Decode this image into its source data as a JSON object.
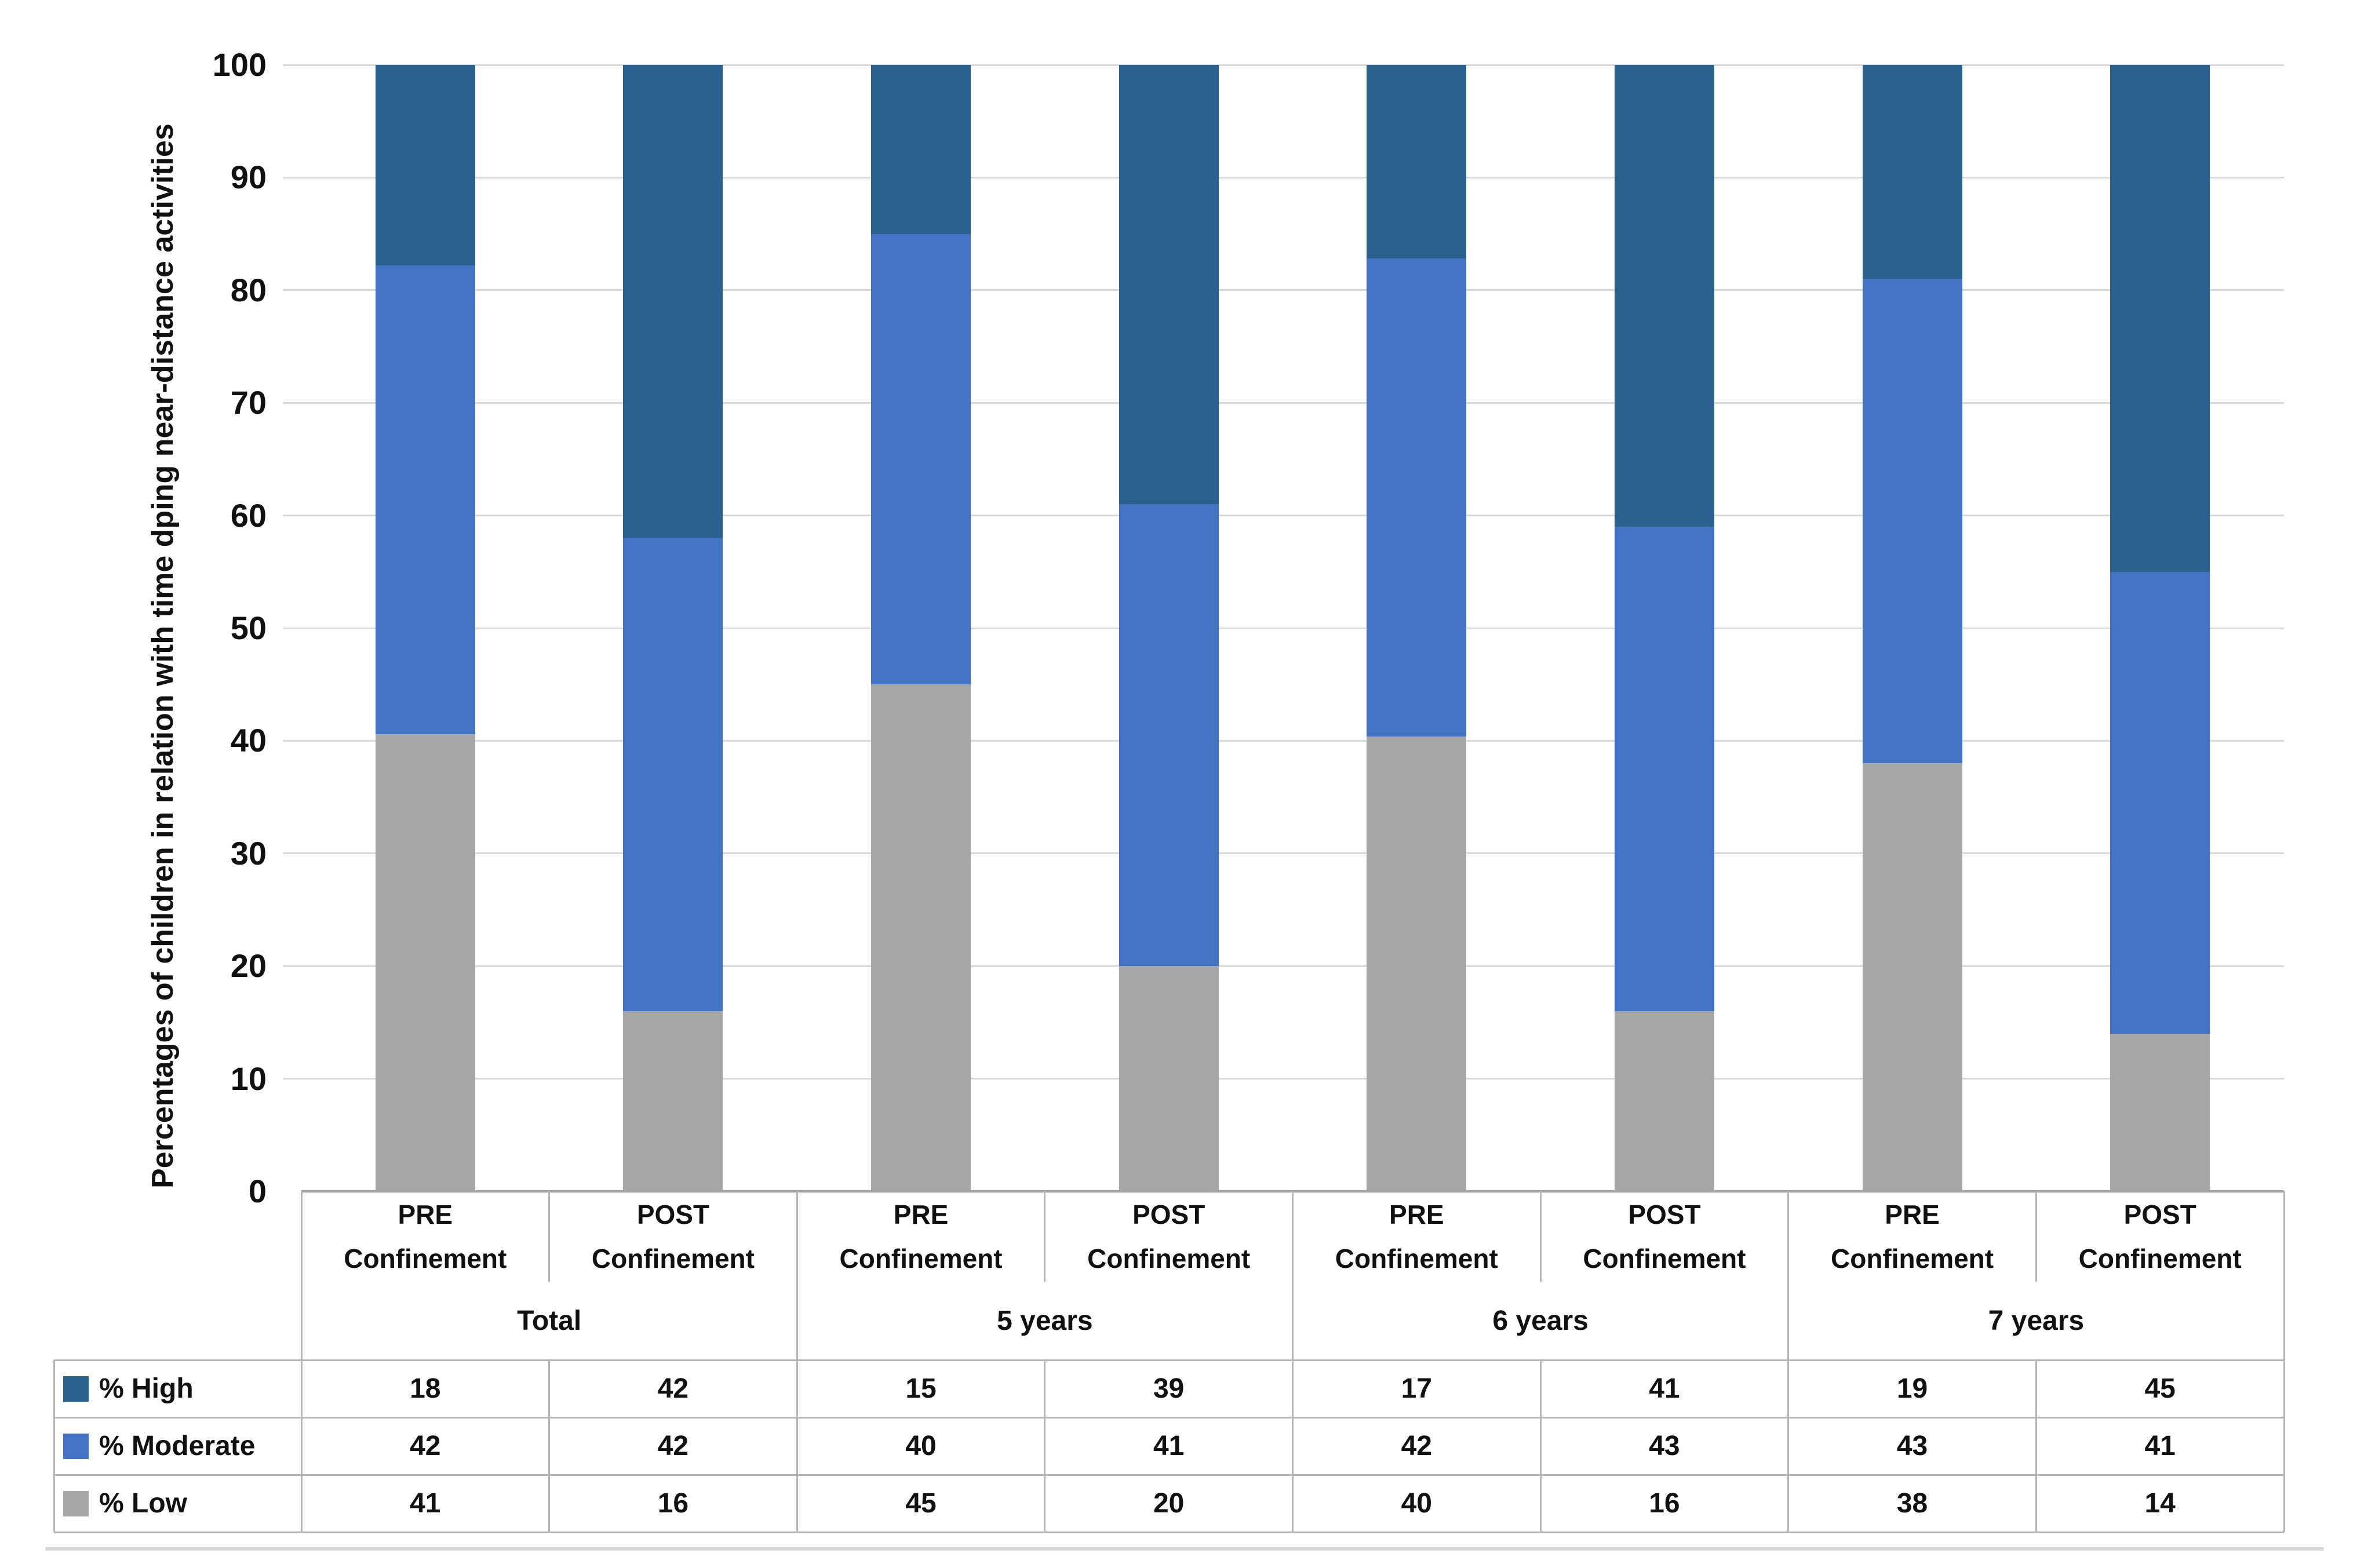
{
  "figure": {
    "background": "#ffffff",
    "bottom_rule_color": "#d9d9d9"
  },
  "chart_data": {
    "type": "bar",
    "stacked": true,
    "title": "",
    "xlabel": "",
    "ylabel": "Percentages of children in relation with time dping near-distance activities",
    "ylim": [
      0,
      100
    ],
    "yticks": [
      0,
      10,
      20,
      30,
      40,
      50,
      60,
      70,
      80,
      90,
      100
    ],
    "grid": true,
    "gridline_color": "#d9d9d9",
    "legend_position": "table-row-headers-left",
    "groups": [
      "Total",
      "5 years",
      "6 years",
      "7 years"
    ],
    "columns": [
      {
        "line1": "PRE",
        "line2": "Confinement"
      },
      {
        "line1": "POST",
        "line2": "Confinement"
      },
      {
        "line1": "PRE",
        "line2": "Confinement"
      },
      {
        "line1": "POST",
        "line2": "Confinement"
      },
      {
        "line1": "PRE",
        "line2": "Confinement"
      },
      {
        "line1": "POST",
        "line2": "Confinement"
      },
      {
        "line1": "PRE",
        "line2": "Confinement"
      },
      {
        "line1": "POST",
        "line2": "Confinement"
      }
    ],
    "series": [
      {
        "name": "% High",
        "color": "#2a618e",
        "values": [
          18,
          42,
          15,
          39,
          17,
          41,
          19,
          45
        ]
      },
      {
        "name": "% Moderate",
        "color": "#4472c4",
        "values": [
          42,
          42,
          40,
          41,
          42,
          43,
          43,
          41
        ]
      },
      {
        "name": "% Low",
        "color": "#a6a6a6",
        "values": [
          41,
          16,
          45,
          20,
          40,
          16,
          38,
          14
        ]
      }
    ],
    "stack_order_bottom_to_top": [
      "% Low",
      "% Moderate",
      "% High"
    ],
    "table_border_color": "#b5b5b5",
    "table_top_border_color": "#a3a3a3",
    "text_color": "#111111"
  }
}
